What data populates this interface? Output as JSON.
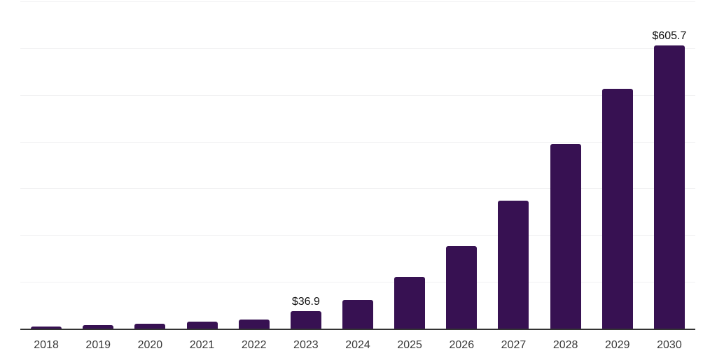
{
  "colors": {
    "background": "#ffffff",
    "bar": "#371152",
    "axis_line": "#333333",
    "gridline": "#f1f1f2",
    "tick_label": "#3a3a3a",
    "value_label": "#111111"
  },
  "chart_data": {
    "type": "bar",
    "title": "",
    "xlabel": "",
    "ylabel": "",
    "categories": [
      "2018",
      "2019",
      "2020",
      "2021",
      "2022",
      "2023",
      "2024",
      "2025",
      "2026",
      "2027",
      "2028",
      "2029",
      "2030"
    ],
    "values": [
      4,
      7,
      11,
      15,
      20,
      36.9,
      62,
      110,
      177,
      274,
      395,
      513,
      605.7
    ],
    "labeled_points": [
      {
        "category": "2023",
        "label": "$36.9"
      },
      {
        "category": "2030",
        "label": "$605.7"
      }
    ],
    "ylim": [
      0,
      700
    ],
    "gridline_step": 100,
    "grid": "horizontal",
    "y_axis_labels": "none",
    "legend": "none"
  }
}
